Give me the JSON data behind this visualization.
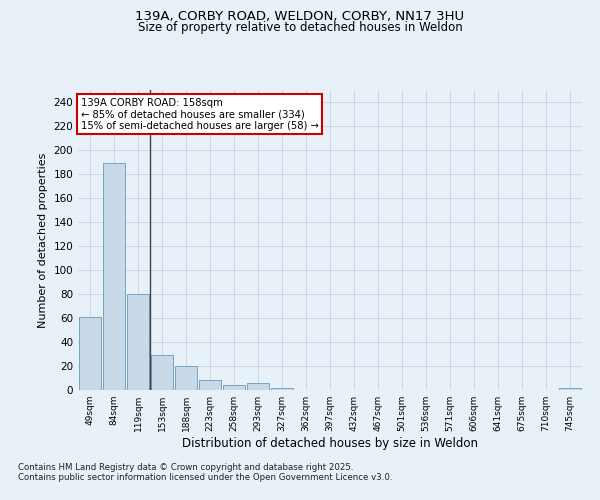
{
  "title_line1": "139A, CORBY ROAD, WELDON, CORBY, NN17 3HU",
  "title_line2": "Size of property relative to detached houses in Weldon",
  "xlabel": "Distribution of detached houses by size in Weldon",
  "ylabel": "Number of detached properties",
  "categories": [
    "49sqm",
    "84sqm",
    "119sqm",
    "153sqm",
    "188sqm",
    "223sqm",
    "258sqm",
    "293sqm",
    "327sqm",
    "362sqm",
    "397sqm",
    "432sqm",
    "467sqm",
    "501sqm",
    "536sqm",
    "571sqm",
    "606sqm",
    "641sqm",
    "675sqm",
    "710sqm",
    "745sqm"
  ],
  "values": [
    61,
    189,
    80,
    29,
    20,
    8,
    4,
    6,
    2,
    0,
    0,
    0,
    0,
    0,
    0,
    0,
    0,
    0,
    0,
    0,
    2
  ],
  "bar_color": "#c9d9e9",
  "bar_edge_color": "#6699bb",
  "bar_linewidth": 0.6,
  "vline_x_index": 2.5,
  "annotation_text": "139A CORBY ROAD: 158sqm\n← 85% of detached houses are smaller (334)\n15% of semi-detached houses are larger (58) →",
  "annotation_box_color": "#ffffff",
  "annotation_border_color": "#cc0000",
  "vline_color": "#444444",
  "grid_color": "#c8d8e8",
  "background_color": "#e8f0f8",
  "ylim": [
    0,
    250
  ],
  "yticks": [
    0,
    20,
    40,
    60,
    80,
    100,
    120,
    140,
    160,
    180,
    200,
    220,
    240
  ],
  "footnote_line1": "Contains HM Land Registry data © Crown copyright and database right 2025.",
  "footnote_line2": "Contains public sector information licensed under the Open Government Licence v3.0."
}
